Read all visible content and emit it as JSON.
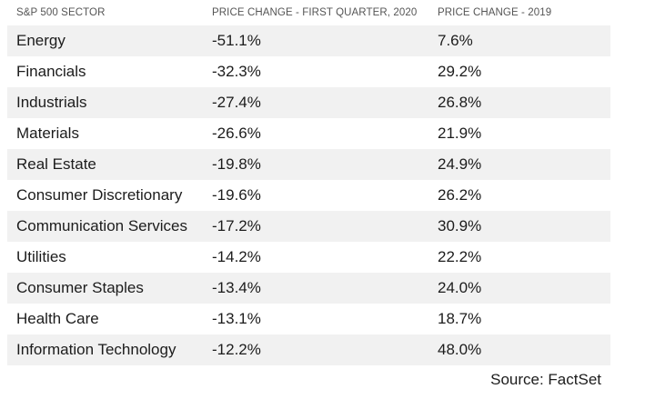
{
  "chart_data": {
    "type": "table",
    "columns": [
      "S&P 500 SECTOR",
      "PRICE CHANGE - FIRST QUARTER, 2020",
      "PRICE CHANGE - 2019"
    ],
    "rows": [
      [
        "Energy",
        "-51.1%",
        "7.6%"
      ],
      [
        "Financials",
        "-32.3%",
        "29.2%"
      ],
      [
        "Industrials",
        "-27.4%",
        "26.8%"
      ],
      [
        "Materials",
        "-26.6%",
        "21.9%"
      ],
      [
        "Real Estate",
        "-19.8%",
        "24.9%"
      ],
      [
        "Consumer Discretionary",
        "-19.6%",
        "26.2%"
      ],
      [
        "Communication Services",
        "-17.2%",
        "30.9%"
      ],
      [
        "Utilities",
        "-14.2%",
        "22.2%"
      ],
      [
        "Consumer Staples",
        "-13.4%",
        "24.0%"
      ],
      [
        "Health Care",
        "-13.1%",
        "18.7%"
      ],
      [
        "Information Technology",
        "-12.2%",
        "48.0%"
      ]
    ],
    "source": "Source: FactSet"
  },
  "colors": {
    "stripe": "#f1f1f1",
    "header_text": "#555555",
    "body_text": "#1c1c1c"
  }
}
